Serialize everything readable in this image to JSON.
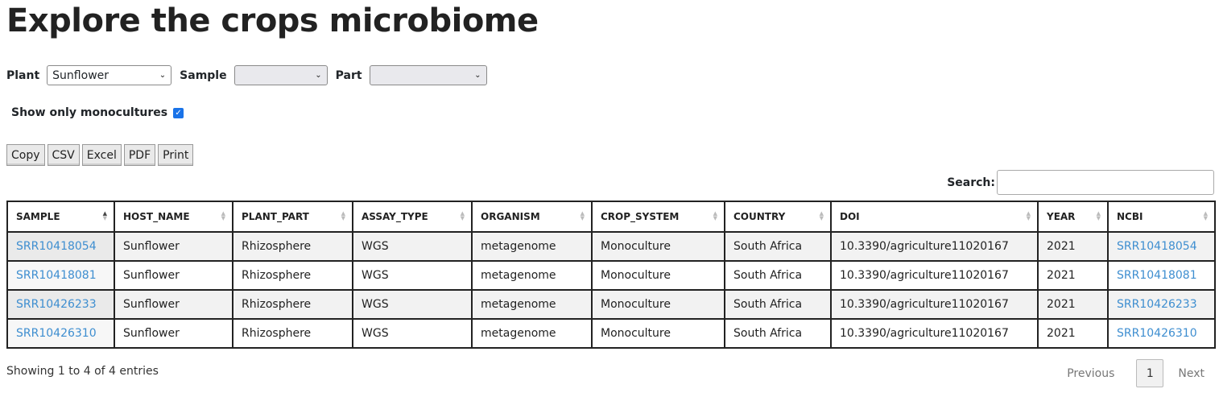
{
  "page": {
    "title": "Explore the crops microbiome"
  },
  "filters": {
    "plant_label": "Plant",
    "plant_value": "Sunflower",
    "sample_label": "Sample",
    "sample_value": "",
    "part_label": "Part",
    "part_value": ""
  },
  "monoculture": {
    "label": "Show only monocultures",
    "checked": true
  },
  "export_buttons": [
    "Copy",
    "CSV",
    "Excel",
    "PDF",
    "Print"
  ],
  "search": {
    "label": "Search:",
    "value": ""
  },
  "table": {
    "columns": [
      "SAMPLE",
      "HOST_NAME",
      "PLANT_PART",
      "ASSAY_TYPE",
      "ORGANISM",
      "CROP_SYSTEM",
      "COUNTRY",
      "DOI",
      "YEAR",
      "NCBI"
    ],
    "sorted_column": "SAMPLE",
    "rows": [
      [
        "SRR10418054",
        "Sunflower",
        "Rhizosphere",
        "WGS",
        "metagenome",
        "Monoculture",
        "South Africa",
        "10.3390/agriculture11020167",
        "2021",
        "SRR10418054"
      ],
      [
        "SRR10418081",
        "Sunflower",
        "Rhizosphere",
        "WGS",
        "metagenome",
        "Monoculture",
        "South Africa",
        "10.3390/agriculture11020167",
        "2021",
        "SRR10418081"
      ],
      [
        "SRR10426233",
        "Sunflower",
        "Rhizosphere",
        "WGS",
        "metagenome",
        "Monoculture",
        "South Africa",
        "10.3390/agriculture11020167",
        "2021",
        "SRR10426233"
      ],
      [
        "SRR10426310",
        "Sunflower",
        "Rhizosphere",
        "WGS",
        "metagenome",
        "Monoculture",
        "South Africa",
        "10.3390/agriculture11020167",
        "2021",
        "SRR10426310"
      ]
    ]
  },
  "footer": {
    "info": "Showing 1 to 4 of 4 entries",
    "previous": "Previous",
    "current_page": "1",
    "next": "Next"
  },
  "colors": {
    "link": "#3e8ed0",
    "checkbox": "#1a73e8"
  }
}
